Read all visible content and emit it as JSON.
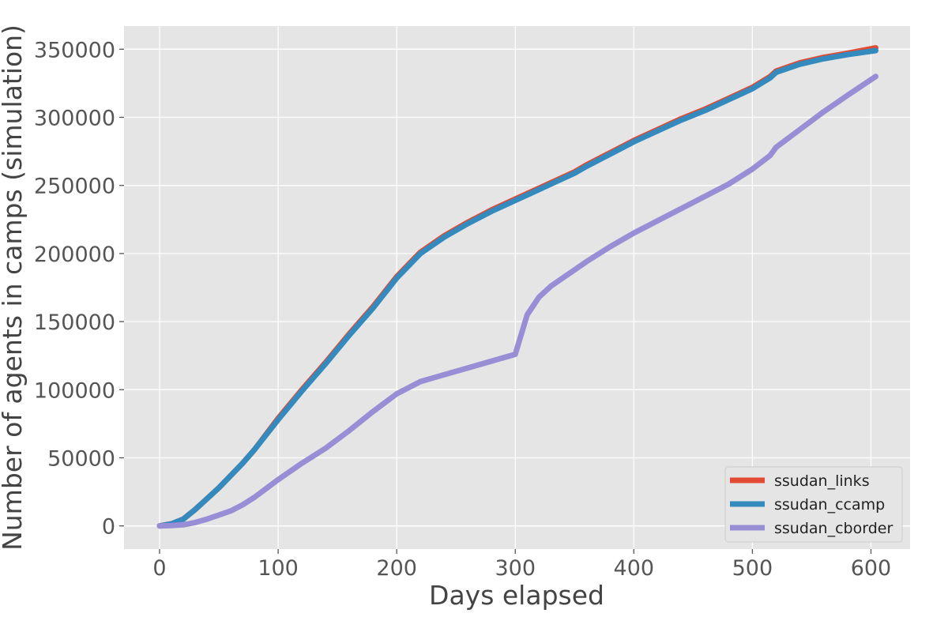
{
  "chart_data": {
    "type": "line",
    "title": "",
    "xlabel": "Days elapsed",
    "ylabel": "Number of agents in camps (simulation)",
    "xlim": [
      -30,
      633
    ],
    "ylim": [
      -17000,
      367000
    ],
    "xticks": [
      0,
      100,
      200,
      300,
      400,
      500,
      600
    ],
    "xtick_labels": [
      "0",
      "100",
      "200",
      "300",
      "400",
      "500",
      "600"
    ],
    "yticks": [
      0,
      50000,
      100000,
      150000,
      200000,
      250000,
      300000,
      350000
    ],
    "ytick_labels": [
      "0",
      "50000",
      "100000",
      "150000",
      "200000",
      "250000",
      "300000",
      "350000"
    ],
    "grid": true,
    "legend_position": "lower-right",
    "x": [
      0,
      10,
      20,
      30,
      40,
      50,
      60,
      70,
      80,
      90,
      100,
      120,
      140,
      160,
      180,
      200,
      220,
      240,
      260,
      280,
      300,
      310,
      320,
      330,
      340,
      350,
      360,
      380,
      400,
      420,
      440,
      460,
      480,
      500,
      515,
      520,
      540,
      560,
      580,
      604
    ],
    "series": [
      {
        "name": "ssudan_links",
        "color": "#E24A33",
        "values": [
          0,
          1500,
          5000,
          12000,
          20000,
          28000,
          37000,
          46000,
          56000,
          67500,
          79000,
          100000,
          120000,
          141000,
          161000,
          183000,
          201000,
          213000,
          223000,
          232000,
          240000,
          244000,
          248000,
          252000,
          256000,
          260000,
          265000,
          274000,
          283000,
          291000,
          299000,
          306000,
          314000,
          322000,
          330000,
          334000,
          340000,
          344000,
          347000,
          351000
        ]
      },
      {
        "name": "ssudan_ccamp",
        "color": "#348ABD",
        "values": [
          0,
          1500,
          5000,
          12000,
          20000,
          28000,
          37000,
          46000,
          56000,
          67000,
          78000,
          99000,
          119000,
          140000,
          160000,
          182000,
          200000,
          212000,
          222000,
          231000,
          239000,
          243000,
          247000,
          251000,
          255000,
          259000,
          264000,
          273000,
          282000,
          290000,
          298000,
          305000,
          313000,
          321000,
          329000,
          333000,
          339000,
          343000,
          346000,
          349000
        ]
      },
      {
        "name": "ssudan_cborder",
        "color": "#988ED5",
        "values": [
          0,
          300,
          800,
          2500,
          5000,
          8000,
          11000,
          15500,
          21000,
          27500,
          34000,
          46000,
          57000,
          70000,
          84000,
          97000,
          106000,
          111000,
          116000,
          121000,
          126000,
          155000,
          168000,
          176000,
          182000,
          188000,
          194000,
          205000,
          215000,
          224000,
          233000,
          242000,
          251000,
          262000,
          272000,
          278000,
          291000,
          304000,
          316000,
          330000
        ]
      }
    ]
  }
}
